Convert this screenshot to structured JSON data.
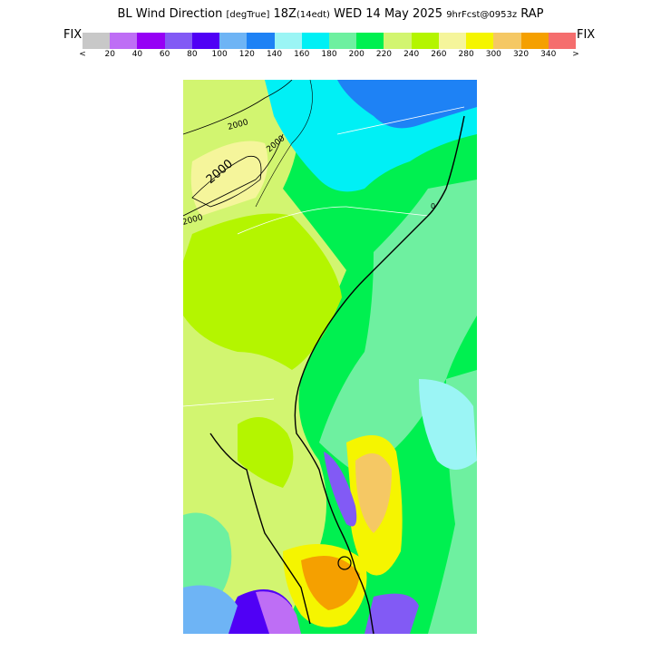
{
  "title": {
    "field": "BL Wind Direction",
    "units": "[degTrue]",
    "time_main": "18Z",
    "time_local": "(14edt)",
    "date": "WED 14 May 2025",
    "forecast": "9hrFcst@0953z",
    "model": "RAP"
  },
  "legend": {
    "left_label": "FIX",
    "right_label": "FIX",
    "colors": [
      "#c8c8c8",
      "#be6ef5",
      "#9600f5",
      "#825af5",
      "#5000f5",
      "#6eb4f5",
      "#1e82f5",
      "#9bf5f5",
      "#00f0f5",
      "#6ef0a0",
      "#00f050",
      "#d2f570",
      "#b4f500",
      "#f5f59b",
      "#f5f500",
      "#f5c864",
      "#f5a000",
      "#f56e6e"
    ],
    "tick_labels": [
      "<",
      "20",
      "40",
      "60",
      "80",
      "100",
      "120",
      "140",
      "160",
      "180",
      "200",
      "220",
      "240",
      "260",
      "280",
      "300",
      "320",
      "340",
      ">"
    ]
  },
  "map": {
    "contour_labels": [
      "2000",
      "2000",
      "2000",
      "2000",
      "0"
    ]
  }
}
